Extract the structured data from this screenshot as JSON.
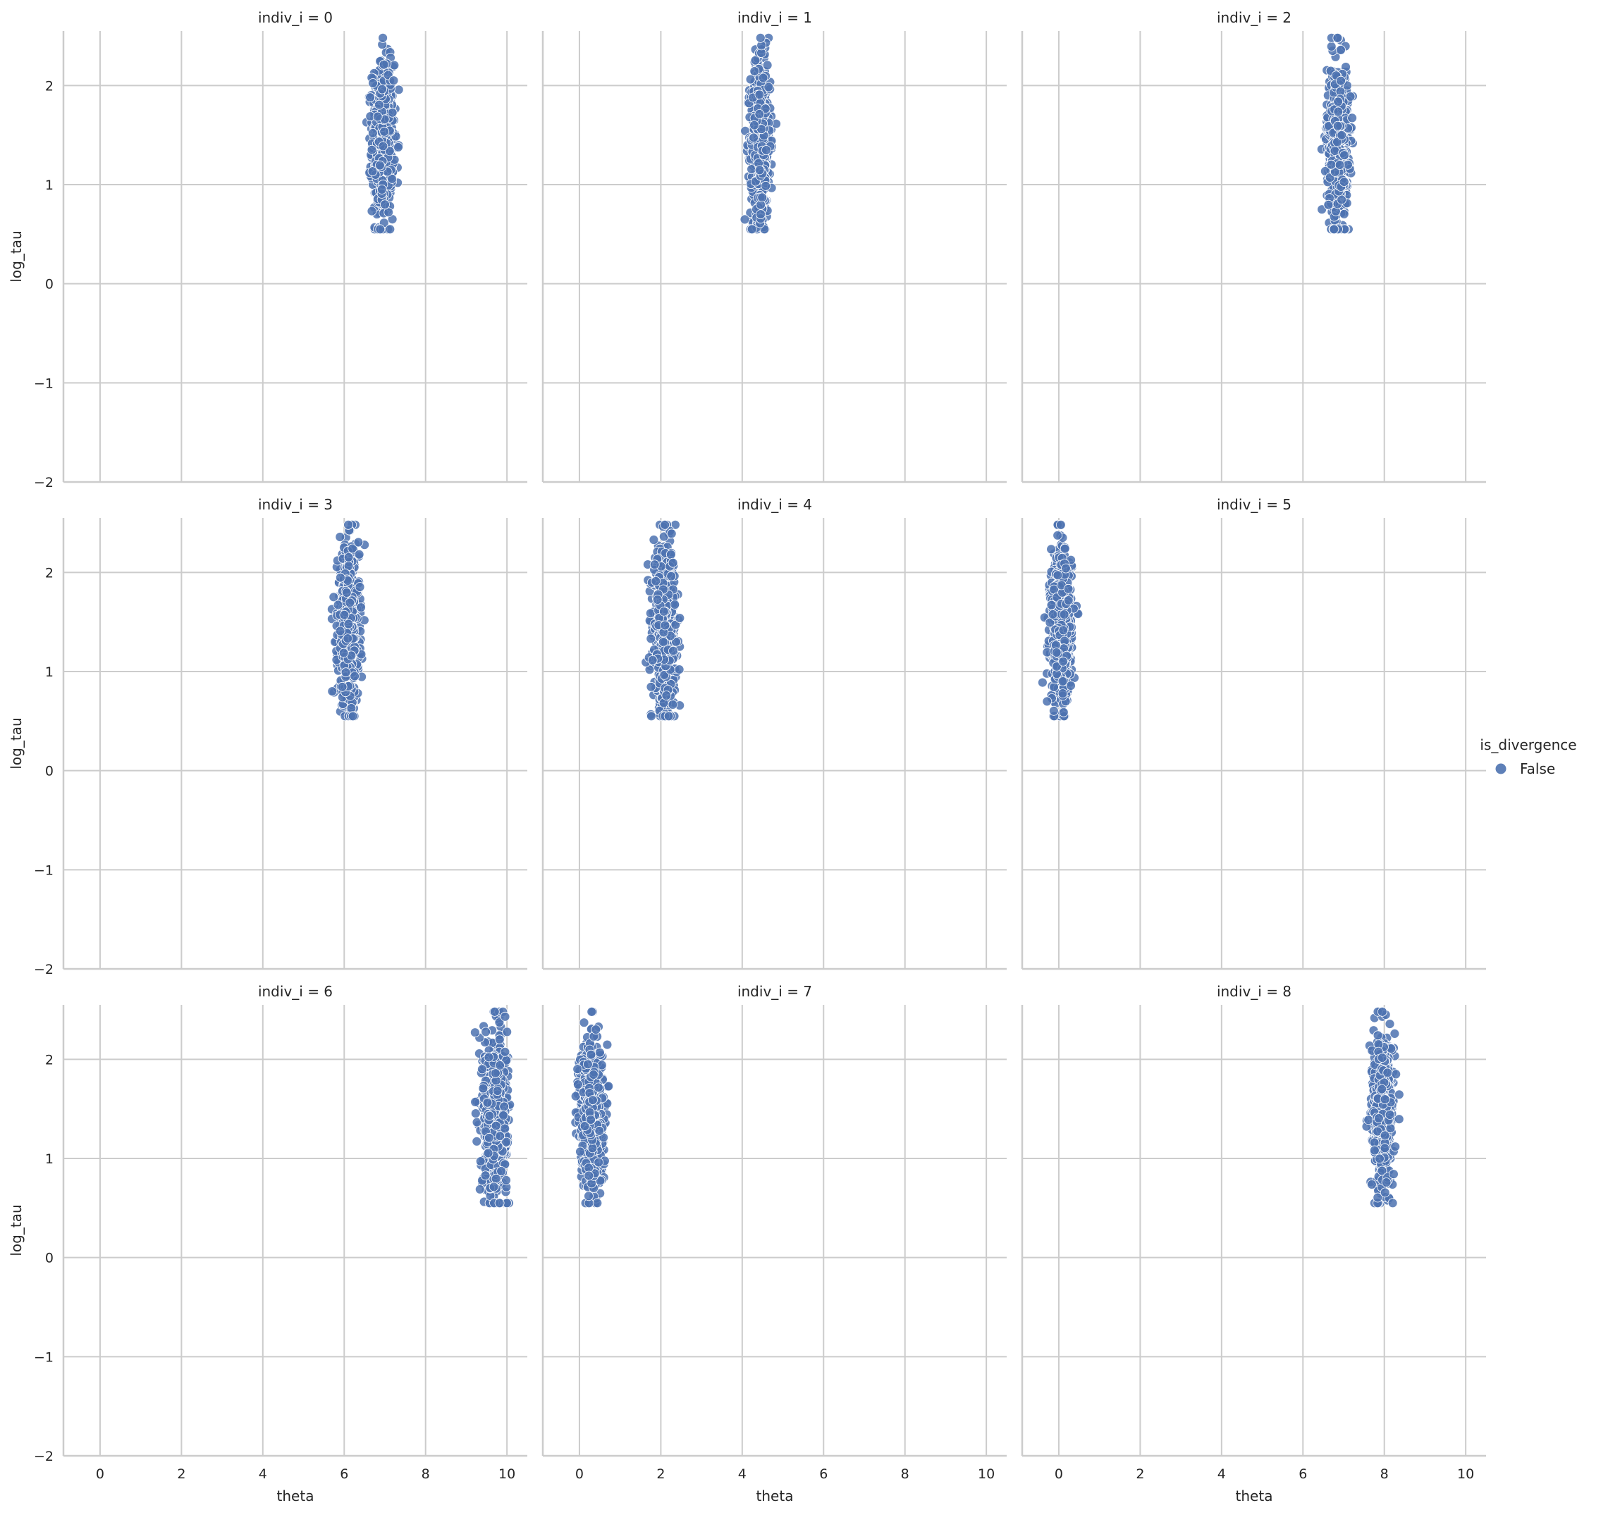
{
  "chart_data": {
    "type": "scatter",
    "facet_variable": "indiv_i",
    "xlabel": "theta",
    "ylabel": "log_tau",
    "xlim": [
      -0.9,
      10.5
    ],
    "ylim": [
      -2.0,
      2.55
    ],
    "xticks": [
      0,
      2,
      4,
      6,
      8,
      10
    ],
    "yticks": [
      -2,
      -1,
      0,
      1,
      2
    ],
    "grid": true,
    "legend": {
      "title": "is_divergence",
      "placement": "right",
      "entries": [
        {
          "label": "False",
          "color": "#4c72b0"
        }
      ]
    },
    "panels": [
      {
        "title": "indiv_i = 0",
        "theta_center": 6.95,
        "theta_spread": 0.13,
        "theta_range": [
          6.55,
          7.35
        ],
        "log_tau_range": [
          0.55,
          2.48
        ]
      },
      {
        "title": "indiv_i = 1",
        "theta_center": 4.45,
        "theta_spread": 0.12,
        "theta_range": [
          4.05,
          4.85
        ],
        "log_tau_range": [
          0.55,
          2.48
        ]
      },
      {
        "title": "indiv_i = 2",
        "theta_center": 6.85,
        "theta_spread": 0.13,
        "theta_range": [
          6.45,
          7.25
        ],
        "log_tau_range": [
          0.55,
          2.48
        ]
      },
      {
        "title": "indiv_i = 3",
        "theta_center": 6.1,
        "theta_spread": 0.13,
        "theta_range": [
          5.7,
          6.5
        ],
        "log_tau_range": [
          0.55,
          2.48
        ]
      },
      {
        "title": "indiv_i = 4",
        "theta_center": 2.1,
        "theta_spread": 0.14,
        "theta_range": [
          1.6,
          2.55
        ],
        "log_tau_range": [
          0.55,
          2.48
        ]
      },
      {
        "title": "indiv_i = 5",
        "theta_center": 0.05,
        "theta_spread": 0.13,
        "theta_range": [
          -0.4,
          0.5
        ],
        "log_tau_range": [
          0.55,
          2.48
        ]
      },
      {
        "title": "indiv_i = 6",
        "theta_center": 9.7,
        "theta_spread": 0.15,
        "theta_range": [
          9.2,
          10.1
        ],
        "log_tau_range": [
          0.55,
          2.48
        ]
      },
      {
        "title": "indiv_i = 7",
        "theta_center": 0.3,
        "theta_spread": 0.14,
        "theta_range": [
          -0.15,
          0.75
        ],
        "log_tau_range": [
          0.55,
          2.48
        ]
      },
      {
        "title": "indiv_i = 8",
        "theta_center": 7.95,
        "theta_spread": 0.13,
        "theta_range": [
          7.5,
          8.4
        ],
        "log_tau_range": [
          0.55,
          2.48
        ]
      }
    ],
    "log_tau_center": 1.45,
    "log_tau_spread": 0.38,
    "marker_color": "#4c72b0",
    "marker_edge_color": "#ffffff"
  }
}
